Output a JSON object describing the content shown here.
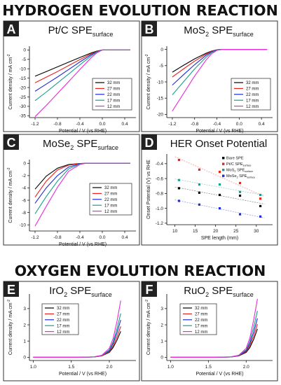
{
  "section_titles": [
    "HYDROGEN EVOLUTION REACTION",
    "OXYGEN EVOLUTION REACTION"
  ],
  "colors": {
    "32 mm": "#000000",
    "27 mm": "#e8231d",
    "22 mm": "#1f2bd6",
    "17 mm": "#1a9e8c",
    "12 mm": "#e82ad8"
  },
  "chart_data": [
    {
      "panel": "A",
      "type": "line",
      "title": "Pt/C SPE",
      "title_sub": "surface",
      "xlabel": "Potential / V (vs RHE)",
      "ylabel": "Current density / mA cm",
      "ylabel_sup": "-2",
      "xlim": [
        -1.3,
        0.6
      ],
      "ylim": [
        -36,
        2
      ],
      "xticks": [
        "-1.2",
        "-0.8",
        "-0.4",
        "0.0",
        "0.4"
      ],
      "yticks": [
        "0",
        "-5",
        "-10",
        "-15",
        "-20",
        "-25",
        "-30",
        "-35"
      ],
      "legend": "bottom-right",
      "series": [
        {
          "name": "32 mm",
          "x": [
            -1.2,
            -1.0,
            -0.8,
            -0.6,
            -0.4,
            -0.2,
            -0.1,
            0.0,
            0.1,
            0.2,
            0.5
          ],
          "y": [
            -14,
            -11.5,
            -9,
            -6.5,
            -4,
            -1.6,
            -0.6,
            0,
            0,
            0,
            0
          ]
        },
        {
          "name": "27 mm",
          "x": [
            -1.2,
            -1.0,
            -0.8,
            -0.6,
            -0.4,
            -0.2,
            -0.1,
            0.0,
            0.1,
            0.2,
            0.5
          ],
          "y": [
            -17.5,
            -14.5,
            -11.5,
            -8.3,
            -5.1,
            -2.1,
            -0.8,
            0,
            0,
            0,
            0
          ]
        },
        {
          "name": "22 mm",
          "x": [
            -1.2,
            -1.0,
            -0.8,
            -0.6,
            -0.4,
            -0.2,
            -0.1,
            0.0,
            0.1,
            0.2,
            0.5
          ],
          "y": [
            -22,
            -18.2,
            -14.4,
            -10.4,
            -6.4,
            -2.6,
            -1,
            0,
            0,
            0,
            0
          ]
        },
        {
          "name": "17 mm",
          "x": [
            -1.2,
            -1.0,
            -0.8,
            -0.6,
            -0.4,
            -0.2,
            -0.1,
            0.0,
            0.1,
            0.2,
            0.5
          ],
          "y": [
            -27,
            -22.4,
            -17.6,
            -12.8,
            -7.9,
            -3.2,
            -1.2,
            0,
            0,
            0,
            0
          ]
        },
        {
          "name": "12 mm",
          "x": [
            -1.2,
            -1.0,
            -0.8,
            -0.6,
            -0.4,
            -0.2,
            -0.1,
            0.0,
            0.1,
            0.2,
            0.5
          ],
          "y": [
            -35.5,
            -29.5,
            -23.2,
            -16.8,
            -10.4,
            -4.2,
            -1.6,
            0,
            0,
            0,
            0
          ]
        }
      ]
    },
    {
      "panel": "B",
      "type": "line",
      "title": "MoS",
      "title_sub2": "2",
      "title_rest": " SPE",
      "title_sub": "surface",
      "xlabel": "Potential / V (vs RHE)",
      "ylabel": "Current density / mA cm",
      "ylabel_sup": "-2",
      "xlim": [
        -1.3,
        0.6
      ],
      "ylim": [
        -21,
        1
      ],
      "xticks": [
        "-1.2",
        "-0.8",
        "-0.4",
        "0.0",
        "0.4"
      ],
      "yticks": [
        "0",
        "-5",
        "-10",
        "-15",
        "-20"
      ],
      "legend": "bottom-right",
      "series": [
        {
          "name": "32 mm",
          "x": [
            -1.2,
            -1.0,
            -0.8,
            -0.6,
            -0.5,
            -0.4,
            -0.3,
            -0.2,
            0.0,
            0.5
          ],
          "y": [
            -7,
            -4.9,
            -2.9,
            -1.2,
            -0.5,
            -0.1,
            0,
            0,
            0,
            0
          ]
        },
        {
          "name": "27 mm",
          "x": [
            -1.2,
            -1.0,
            -0.8,
            -0.6,
            -0.5,
            -0.4,
            -0.3,
            -0.2,
            0.0,
            0.5
          ],
          "y": [
            -8.5,
            -6,
            -3.6,
            -1.5,
            -0.6,
            -0.1,
            0,
            0,
            0,
            0
          ]
        },
        {
          "name": "22 mm",
          "x": [
            -1.2,
            -1.0,
            -0.8,
            -0.6,
            -0.5,
            -0.4,
            -0.3,
            -0.2,
            0.0,
            0.5
          ],
          "y": [
            -11,
            -7.8,
            -4.7,
            -1.9,
            -0.8,
            -0.15,
            0,
            0,
            0,
            0
          ]
        },
        {
          "name": "17 mm",
          "x": [
            -1.2,
            -1.0,
            -0.8,
            -0.6,
            -0.5,
            -0.4,
            -0.3,
            -0.2,
            0.0,
            0.5
          ],
          "y": [
            -14,
            -10,
            -6,
            -2.5,
            -1,
            -0.2,
            0,
            0,
            0,
            0
          ]
        },
        {
          "name": "12 mm",
          "x": [
            -1.2,
            -1.0,
            -0.8,
            -0.6,
            -0.5,
            -0.4,
            -0.3,
            -0.2,
            0.0,
            0.5
          ],
          "y": [
            -19,
            -13.6,
            -8.2,
            -3.4,
            -1.4,
            -0.3,
            0,
            0,
            0,
            0
          ]
        }
      ]
    },
    {
      "panel": "C",
      "type": "line",
      "title": "MoSe",
      "title_sub2": "2",
      "title_rest": " SPE",
      "title_sub": "surface",
      "xlabel": "Potential / V (vs RHE)",
      "ylabel": "Current density / mA cm",
      "ylabel_sup": "-2",
      "xlim": [
        -1.3,
        0.6
      ],
      "ylim": [
        -11,
        0.6
      ],
      "xticks": [
        "-1.2",
        "-0.8",
        "-0.4",
        "0.0",
        "0.4"
      ],
      "yticks": [
        "0",
        "-2",
        "-4",
        "-6",
        "-8",
        "-10"
      ],
      "legend": "bottom-right",
      "series": [
        {
          "name": "32 mm",
          "x": [
            -1.2,
            -1.0,
            -0.8,
            -0.6,
            -0.4,
            -0.3,
            -0.2,
            0.0,
            0.5
          ],
          "y": [
            -4.2,
            -2.1,
            -0.8,
            -0.2,
            -0.04,
            0,
            0,
            0,
            0
          ]
        },
        {
          "name": "27 mm",
          "x": [
            -1.2,
            -1.0,
            -0.8,
            -0.6,
            -0.4,
            -0.3,
            -0.2,
            0.0,
            0.5
          ],
          "y": [
            -5.5,
            -2.9,
            -1.1,
            -0.3,
            -0.05,
            0,
            0,
            0,
            0
          ]
        },
        {
          "name": "22 mm",
          "x": [
            -1.2,
            -1.0,
            -0.8,
            -0.6,
            -0.4,
            -0.3,
            -0.2,
            0.0,
            0.5
          ],
          "y": [
            -6.5,
            -4,
            -2,
            -0.6,
            -0.08,
            0,
            0,
            0,
            0
          ]
        },
        {
          "name": "17 mm",
          "x": [
            -1.2,
            -1.0,
            -0.8,
            -0.6,
            -0.4,
            -0.3,
            -0.2,
            0.0,
            0.5
          ],
          "y": [
            -8.2,
            -5.4,
            -2.9,
            -0.9,
            -0.12,
            0,
            0,
            0,
            0
          ]
        },
        {
          "name": "12 mm",
          "x": [
            -1.2,
            -1.0,
            -0.8,
            -0.6,
            -0.4,
            -0.3,
            -0.2,
            0.0,
            0.5
          ],
          "y": [
            -10.2,
            -7,
            -3.9,
            -1.3,
            -0.2,
            0,
            0,
            0,
            0
          ]
        }
      ]
    },
    {
      "panel": "D",
      "type": "scatter",
      "title": "HER Onset Potential",
      "xlabel": "SPE length (mm)",
      "ylabel": "Onset Potential (V) vs RHE",
      "xlim": [
        8,
        34
      ],
      "ylim": [
        -1.22,
        -0.27
      ],
      "xticks": [
        "10",
        "15",
        "20",
        "25",
        "30"
      ],
      "yticks": [
        "-0.4",
        "-0.6",
        "-0.8",
        "-1.0",
        "-1.2"
      ],
      "legend": "top-right",
      "series": [
        {
          "name": "Bare SPE",
          "label_main": "Bare SPE",
          "label_sub": "",
          "color": "#000000",
          "x": [
            11,
            16,
            21,
            26,
            31
          ],
          "y": [
            -0.73,
            -0.79,
            -0.82,
            -0.83,
            -0.97
          ]
        },
        {
          "name": "Pt/C SPE surface",
          "label_main": "Pt/C SPE",
          "label_sub": "surface",
          "color": "#e8231d",
          "x": [
            11,
            16,
            21,
            26,
            31
          ],
          "y": [
            -0.35,
            -0.48,
            -0.51,
            -0.66,
            -0.87
          ]
        },
        {
          "name": "MoS2 SPE surface",
          "label_main": "MoS",
          "label_sub2": "2",
          "label_rest": " SPE",
          "label_sub": "surface",
          "color": "#1a9e8c",
          "x": [
            11,
            16,
            21,
            26,
            31
          ],
          "y": [
            -0.62,
            -0.68,
            -0.68,
            -0.78,
            -0.82
          ]
        },
        {
          "name": "MoSe2 SPE surface",
          "label_main": "MoSe",
          "label_sub2": "2",
          "label_rest": " SPE",
          "label_sub": "surface",
          "color": "#1f2bd6",
          "x": [
            11,
            16,
            21,
            26,
            31
          ],
          "y": [
            -0.9,
            -0.95,
            -1.0,
            -1.08,
            -1.11
          ]
        }
      ]
    },
    {
      "panel": "E",
      "type": "line",
      "title": "IrO",
      "title_sub2": "2",
      "title_rest": " SPE",
      "title_sub": "surface",
      "xlabel": "Potential / V (vs RHE)",
      "ylabel": "Current density / mA cm",
      "ylabel_sup": "-2",
      "xlim": [
        0.95,
        2.35
      ],
      "ylim": [
        -0.2,
        3.9
      ],
      "xticks": [
        "1.0",
        "1.5",
        "2.0"
      ],
      "yticks": [
        "0",
        "1",
        "2",
        "3"
      ],
      "legend": "top-left",
      "series": [
        {
          "name": "32 mm",
          "x": [
            1.0,
            1.6,
            1.8,
            1.9,
            2.0,
            2.05,
            2.1,
            2.15
          ],
          "y": [
            0,
            0,
            0.02,
            0.08,
            0.3,
            0.6,
            1.05,
            1.6
          ]
        },
        {
          "name": "27 mm",
          "x": [
            1.0,
            1.6,
            1.8,
            1.9,
            2.0,
            2.05,
            2.1,
            2.15
          ],
          "y": [
            0,
            0,
            0.02,
            0.08,
            0.34,
            0.7,
            1.25,
            1.9
          ]
        },
        {
          "name": "22 mm",
          "x": [
            1.0,
            1.6,
            1.8,
            1.9,
            2.0,
            2.05,
            2.1,
            2.15
          ],
          "y": [
            0,
            0,
            0.02,
            0.1,
            0.4,
            0.85,
            1.5,
            2.3
          ]
        },
        {
          "name": "17 mm",
          "x": [
            1.0,
            1.6,
            1.8,
            1.9,
            2.0,
            2.05,
            2.1,
            2.15
          ],
          "y": [
            0,
            0,
            0.02,
            0.1,
            0.45,
            0.95,
            1.75,
            2.7
          ]
        },
        {
          "name": "12 mm",
          "x": [
            1.0,
            1.6,
            1.8,
            1.9,
            2.0,
            2.05,
            2.1,
            2.15
          ],
          "y": [
            0,
            0,
            0.03,
            0.12,
            0.55,
            1.15,
            2.2,
            3.5
          ]
        }
      ]
    },
    {
      "panel": "F",
      "type": "line",
      "title": "RuO",
      "title_sub2": "2",
      "title_rest": " SPE",
      "title_sub": "surface",
      "xlabel": "Potential / V (vs RHE)",
      "ylabel": "Current density / mA cm",
      "ylabel_sup": "-2",
      "xlim": [
        0.95,
        2.35
      ],
      "ylim": [
        -0.2,
        3.9
      ],
      "xticks": [
        "1.0",
        "1.5",
        "2.0"
      ],
      "yticks": [
        "0",
        "1",
        "2",
        "3"
      ],
      "legend": "top-left",
      "series": [
        {
          "name": "32 mm",
          "x": [
            1.0,
            1.6,
            1.8,
            1.9,
            2.0,
            2.05,
            2.1,
            2.15
          ],
          "y": [
            0,
            0,
            0.02,
            0.08,
            0.3,
            0.6,
            1.1,
            1.75
          ]
        },
        {
          "name": "27 mm",
          "x": [
            1.0,
            1.6,
            1.8,
            1.9,
            2.0,
            2.05,
            2.1,
            2.15
          ],
          "y": [
            0,
            0,
            0.02,
            0.09,
            0.35,
            0.72,
            1.3,
            2.05
          ]
        },
        {
          "name": "22 mm",
          "x": [
            1.0,
            1.6,
            1.8,
            1.9,
            2.0,
            2.05,
            2.1,
            2.15
          ],
          "y": [
            0,
            0,
            0.02,
            0.1,
            0.4,
            0.85,
            1.55,
            2.4
          ]
        },
        {
          "name": "17 mm",
          "x": [
            1.0,
            1.6,
            1.8,
            1.9,
            2.0,
            2.05,
            2.1,
            2.15
          ],
          "y": [
            0,
            0,
            0.02,
            0.11,
            0.46,
            1.0,
            1.85,
            2.85
          ]
        },
        {
          "name": "12 mm",
          "x": [
            1.0,
            1.6,
            1.8,
            1.9,
            2.0,
            2.05,
            2.1,
            2.15
          ],
          "y": [
            0,
            0,
            0.03,
            0.12,
            0.55,
            1.2,
            2.3,
            3.6
          ]
        }
      ]
    }
  ]
}
